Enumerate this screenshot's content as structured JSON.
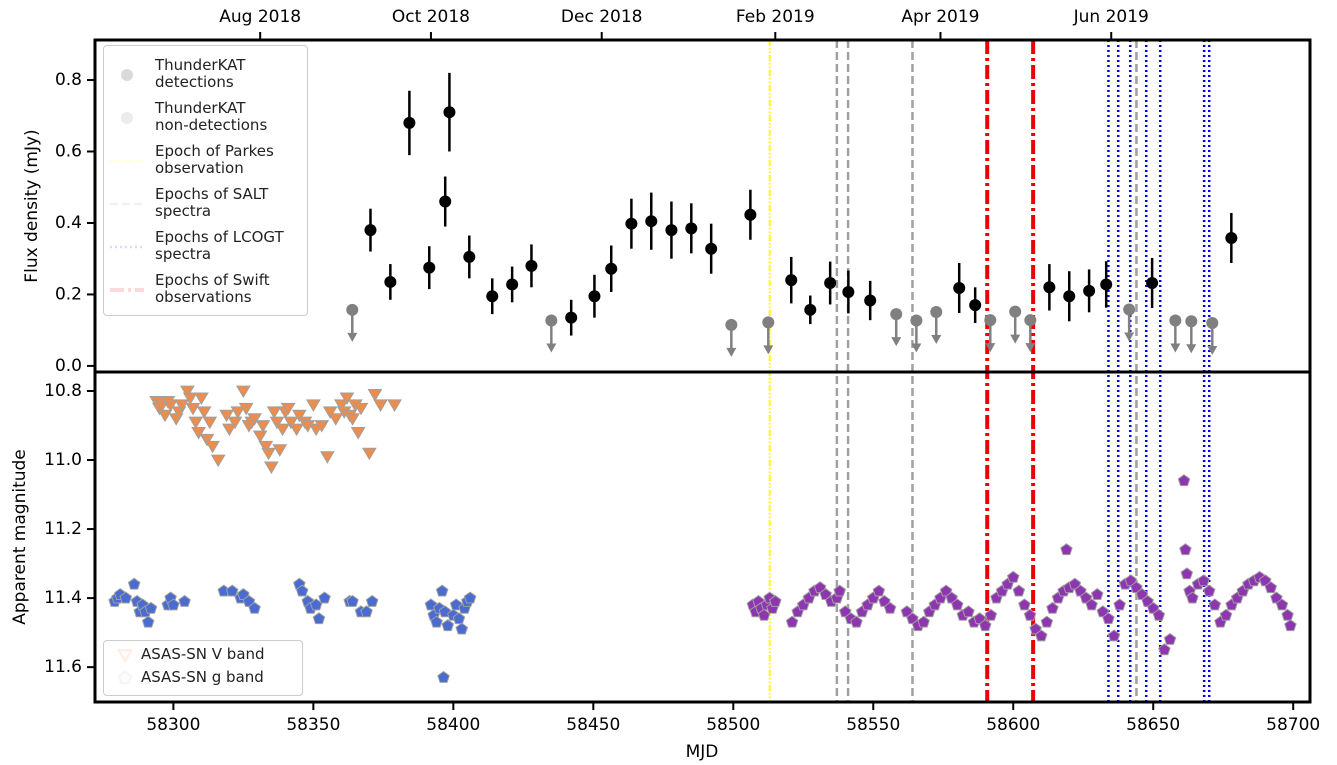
{
  "chart_data": [
    {
      "type": "errorbar",
      "ylabel": "Flux density (mJy)",
      "xlim": [
        58272,
        58706
      ],
      "ylim": [
        -0.017,
        0.912
      ],
      "yticks": [
        {
          "value": 0,
          "label": "0.0"
        },
        0.2,
        0.4,
        0.6,
        0.8
      ],
      "x2ticks": [
        {
          "value": 58331,
          "label": "Aug 2018"
        },
        {
          "value": 58392,
          "label": "Oct 2018"
        },
        {
          "value": 58453,
          "label": "Dec 2018"
        },
        {
          "value": 58515,
          "label": "Feb 2019"
        },
        {
          "value": 58574,
          "label": "Apr 2019"
        },
        {
          "value": 58635,
          "label": "Jun 2019"
        }
      ],
      "legend": "upper left",
      "series": [
        {
          "name": "ThunderKAT\ndetections",
          "color": "#000000",
          "marker": "circle",
          "x": [
            58370.4,
            58377.5,
            58384.3,
            58391.4,
            58397.1,
            58398.6,
            58405.7,
            58413.9,
            58421.0,
            58427.9,
            58442.1,
            58450.4,
            58456.4,
            58463.6,
            58470.7,
            58477.9,
            58485.0,
            58492.1,
            58506.1,
            58520.7,
            58527.5,
            58534.6,
            58541.1,
            58548.9,
            58580.7,
            58586.4,
            58612.9,
            58620.0,
            58627.1,
            58633.2,
            58649.6,
            58677.9
          ],
          "values": [
            0.38,
            0.235,
            0.68,
            0.275,
            0.46,
            0.71,
            0.305,
            0.195,
            0.228,
            0.28,
            0.135,
            0.195,
            0.272,
            0.398,
            0.405,
            0.38,
            0.385,
            0.328,
            0.423,
            0.24,
            0.157,
            0.232,
            0.207,
            0.183,
            0.218,
            0.17,
            0.22,
            0.195,
            0.21,
            0.228,
            0.232,
            0.358
          ],
          "errors": [
            0.06,
            0.05,
            0.09,
            0.06,
            0.07,
            0.11,
            0.06,
            0.05,
            0.05,
            0.06,
            0.05,
            0.06,
            0.065,
            0.07,
            0.08,
            0.08,
            0.07,
            0.07,
            0.07,
            0.065,
            0.04,
            0.06,
            0.06,
            0.055,
            0.07,
            0.05,
            0.065,
            0.07,
            0.06,
            0.065,
            0.07,
            0.07
          ]
        },
        {
          "name": "ThunderKAT\nnon-detections",
          "color": "#808080",
          "marker": "circle",
          "upper_limit": true,
          "x": [
            58363.9,
            58435.0,
            58499.3,
            58512.5,
            58558.2,
            58565.4,
            58572.5,
            58591.8,
            58600.7,
            58606.1,
            58641.4,
            58657.9,
            58663.6,
            58671.1
          ],
          "values": [
            0.157,
            0.127,
            0.115,
            0.122,
            0.145,
            0.127,
            0.151,
            0.128,
            0.152,
            0.128,
            0.158,
            0.127,
            0.125,
            0.12
          ]
        }
      ],
      "vlines": [
        {
          "name": "Epoch of Parkes\nobservation",
          "color": "#ffff00",
          "style": "dash-dot-dot",
          "x": [
            58513
          ]
        },
        {
          "name": "Epochs of SALT\nspectra",
          "color": "#a0a0a0",
          "style": "dashed",
          "x": [
            58537,
            58541,
            58564,
            58644
          ]
        },
        {
          "name": "Epochs of LCOGT\nspectra",
          "color": "#0000dd",
          "style": "dotted",
          "x": [
            58634,
            58637.5,
            58641.8,
            58647.5,
            58652.5,
            58668.2,
            58670
          ]
        },
        {
          "name": "Epochs of Swift\nobservations",
          "color": "#ee0000",
          "style": "dash-dot",
          "x": [
            58590.7,
            58607.1
          ]
        }
      ]
    },
    {
      "type": "scatter",
      "xlabel": "MJD",
      "ylabel": "Apparent magnitude",
      "xlim": [
        58272,
        58706
      ],
      "ylim": [
        10.745,
        11.701
      ],
      "y_inverted": true,
      "xticks": [
        58300,
        58350,
        58400,
        58450,
        58500,
        58550,
        58600,
        58650,
        58700
      ],
      "yticks": [
        10.8,
        {
          "value": 11,
          "label": "11.0"
        },
        11.2,
        11.4,
        11.6
      ],
      "legend": "lower left",
      "series": [
        {
          "name": "ASAS-SN V band",
          "marker": "triangle-down",
          "color": "#ea8d4e",
          "edgecolor": "#a0a0a0",
          "x": [
            58294,
            58295,
            58296,
            58297,
            58298,
            58299,
            58301,
            58302,
            58303,
            58305,
            58306,
            58307,
            58308,
            58309,
            58310,
            58311,
            58312,
            58313,
            58314,
            58316,
            58319,
            58320,
            58322,
            58323,
            58325,
            58326,
            58327,
            58328,
            58329,
            58331,
            58332,
            58333,
            58334,
            58335,
            58336,
            58337,
            58338,
            58339,
            58340,
            58341,
            58342,
            58344,
            58345,
            58347,
            58348,
            58350,
            58351,
            58353,
            58355,
            58356,
            58358,
            58360,
            58361,
            58362,
            58363,
            58364,
            58365,
            58366,
            58367,
            58370,
            58372,
            58374,
            58379
          ],
          "values": [
            10.83,
            10.85,
            10.84,
            10.87,
            10.83,
            10.84,
            10.88,
            10.86,
            10.84,
            10.8,
            10.82,
            10.85,
            10.89,
            10.92,
            10.82,
            10.86,
            10.94,
            10.89,
            10.96,
            11.0,
            10.87,
            10.91,
            10.89,
            10.86,
            10.8,
            10.85,
            10.9,
            10.89,
            10.88,
            10.93,
            10.9,
            10.96,
            10.98,
            11.02,
            10.86,
            10.89,
            10.97,
            10.91,
            10.86,
            10.85,
            10.89,
            10.91,
            10.87,
            10.89,
            10.9,
            10.84,
            10.91,
            10.9,
            10.99,
            10.86,
            10.88,
            10.84,
            10.86,
            10.82,
            10.87,
            10.88,
            10.84,
            10.92,
            10.85,
            10.98,
            10.81,
            10.84,
            10.84
          ]
        },
        {
          "name": "ASAS-SN g band",
          "marker": "pentagon",
          "color": "#b8b8b8",
          "edgecolor": "#a0a0a0",
          "segments": [
            {
              "color": "#4a6bd0",
              "x": [
                58279,
                58280,
                58281,
                58283,
                58286,
                58287,
                58288,
                58289,
                58290,
                58291,
                58292,
                58298,
                58299,
                58300,
                58304,
                58318,
                58321,
                58324,
                58325,
                58327,
                58329,
                58345,
                58346,
                58348,
                58349,
                58351,
                58352,
                58354,
                58363,
                58364,
                58367,
                58369,
                58371,
                58392,
                58393,
                58394,
                58395,
                58396,
                58396.5,
                58397,
                58398,
                58400,
                58401,
                58402,
                58403,
                58404,
                58405,
                58406
              ],
              "values": [
                11.41,
                11.4,
                11.39,
                11.4,
                11.36,
                11.41,
                11.44,
                11.42,
                11.44,
                11.47,
                11.43,
                11.42,
                11.4,
                11.42,
                11.41,
                11.38,
                11.38,
                11.4,
                11.39,
                11.41,
                11.43,
                11.36,
                11.38,
                11.41,
                11.43,
                11.42,
                11.46,
                11.4,
                11.41,
                11.41,
                11.44,
                11.44,
                11.41,
                11.42,
                11.45,
                11.47,
                11.43,
                11.38,
                11.63,
                11.44,
                11.48,
                11.45,
                11.42,
                11.46,
                11.49,
                11.43,
                11.41,
                11.4
              ]
            },
            {
              "color": "#8e35b0",
              "x": [
                58507,
                58508,
                58509,
                58510,
                58511,
                58512,
                58513,
                58514,
                58515,
                58521,
                58523,
                58525,
                58527,
                58529,
                58531,
                58533,
                58535,
                58537,
                58538,
                58540,
                58542,
                58544,
                58546,
                58548,
                58550,
                58552,
                58554,
                58556,
                58562,
                58564,
                58566,
                58568,
                58570,
                58572,
                58574,
                58576,
                58578,
                58580,
                58582,
                58584,
                58586,
                58588,
                58590,
                58592,
                58594,
                58596,
                58598,
                58600,
                58602,
                58604,
                58606,
                58608,
                58610,
                58612,
                58614,
                58616,
                58618,
                58619,
                58620,
                58622,
                58624,
                58626,
                58628,
                58630,
                58632,
                58634,
                58636,
                58638,
                58640,
                58642,
                58644,
                58646,
                58648,
                58650,
                58652,
                58654,
                58656,
                58661,
                58661.5,
                58662,
                58663,
                58664,
                58666,
                58668,
                58670,
                58672,
                58674,
                58676,
                58678,
                58680,
                58682,
                58684,
                58686,
                58688,
                58690,
                58692,
                58694,
                58696,
                58698,
                58699
              ],
              "values": [
                11.42,
                11.44,
                11.41,
                11.43,
                11.45,
                11.42,
                11.4,
                11.43,
                11.41,
                11.47,
                11.44,
                11.42,
                11.4,
                11.38,
                11.37,
                11.39,
                11.41,
                11.4,
                11.38,
                11.44,
                11.46,
                11.47,
                11.44,
                11.42,
                11.4,
                11.38,
                11.41,
                11.43,
                11.44,
                11.46,
                11.48,
                11.47,
                11.44,
                11.42,
                11.4,
                11.38,
                11.4,
                11.42,
                11.45,
                11.44,
                11.47,
                11.46,
                11.48,
                11.45,
                11.4,
                11.38,
                11.36,
                11.34,
                11.38,
                11.42,
                11.45,
                11.49,
                11.51,
                11.47,
                11.43,
                11.4,
                11.38,
                11.26,
                11.37,
                11.36,
                11.38,
                11.4,
                11.42,
                11.39,
                11.44,
                11.46,
                11.51,
                11.42,
                11.36,
                11.35,
                11.37,
                11.39,
                11.41,
                11.43,
                11.45,
                11.55,
                11.52,
                11.06,
                11.26,
                11.33,
                11.38,
                11.4,
                11.36,
                11.35,
                11.38,
                11.42,
                11.47,
                11.45,
                11.42,
                11.4,
                11.38,
                11.36,
                11.35,
                11.34,
                11.35,
                11.37,
                11.4,
                11.42,
                11.45,
                11.48
              ]
            }
          ]
        }
      ]
    }
  ]
}
